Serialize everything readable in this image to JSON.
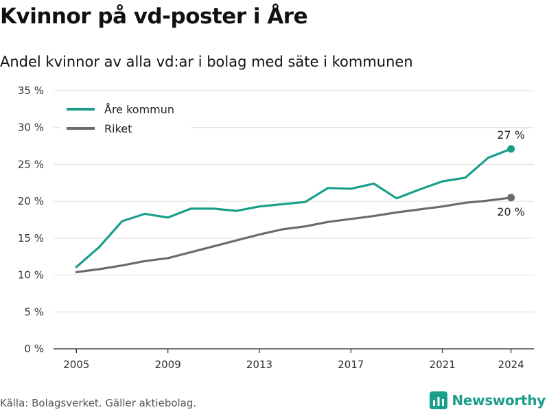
{
  "header": {
    "title": "Kvinnor på vd-poster i Åre",
    "subtitle": "Andel kvinnor av alla vd:ar i bolag med säte i kommunen"
  },
  "footer": {
    "source": "Källa: Bolagsverket. Gäller aktiebolag.",
    "brand": "Newsworthy",
    "brand_icon": "bar-chart-logo-icon"
  },
  "colors": {
    "are": "#1a9e8c",
    "riket": "#6b6a70",
    "grid": "#dddddd",
    "brand": "#1a9e8c"
  },
  "chart_data": {
    "type": "line",
    "title": "Kvinnor på vd-poster i Åre",
    "subtitle": "Andel kvinnor av alla vd:ar i bolag med säte i kommunen",
    "xlabel": "",
    "ylabel": "",
    "x": [
      2005,
      2006,
      2007,
      2008,
      2009,
      2010,
      2011,
      2012,
      2013,
      2014,
      2015,
      2016,
      2017,
      2018,
      2019,
      2020,
      2021,
      2022,
      2023,
      2024
    ],
    "x_ticks": [
      "2005",
      "2009",
      "2013",
      "2017",
      "2021",
      "2024"
    ],
    "y_ticks": [
      "0 %",
      "5 %",
      "10 %",
      "15 %",
      "20 %",
      "25 %",
      "30 %",
      "35 %"
    ],
    "ylim": [
      0,
      35
    ],
    "grid": true,
    "legend_position": "top-left",
    "series": [
      {
        "name": "Åre kommun",
        "color": "#1a9e8c",
        "values": [
          11.1,
          13.8,
          17.3,
          18.3,
          17.8,
          19.0,
          19.0,
          18.7,
          19.3,
          19.6,
          19.9,
          21.8,
          21.7,
          22.4,
          20.4,
          21.6,
          22.7,
          23.2,
          25.9,
          27.1
        ],
        "end_label": "27 %"
      },
      {
        "name": "Riket",
        "color": "#6b6a70",
        "values": [
          10.4,
          10.8,
          11.3,
          11.9,
          12.3,
          13.1,
          13.9,
          14.7,
          15.5,
          16.2,
          16.6,
          17.2,
          17.6,
          18.0,
          18.5,
          18.9,
          19.3,
          19.8,
          20.1,
          20.5
        ],
        "end_label": "20 %"
      }
    ]
  }
}
